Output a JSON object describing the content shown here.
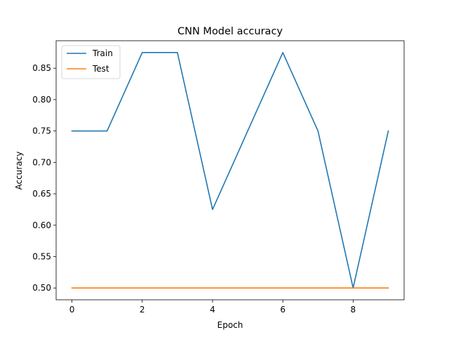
{
  "chart_data": {
    "type": "line",
    "title": "CNN Model accuracy",
    "xlabel": "Epoch",
    "ylabel": "Accuracy",
    "x": [
      0,
      1,
      2,
      3,
      4,
      5,
      6,
      7,
      8,
      9
    ],
    "xlim": [
      -0.45,
      9.45
    ],
    "ylim": [
      0.4812,
      0.8938
    ],
    "xticks": [
      0,
      2,
      4,
      6,
      8
    ],
    "yticks": [
      0.5,
      0.55,
      0.6,
      0.65,
      0.7,
      0.75,
      0.8,
      0.85
    ],
    "xtick_labels": [
      "0",
      "2",
      "4",
      "6",
      "8"
    ],
    "ytick_labels": [
      "0.50",
      "0.55",
      "0.60",
      "0.65",
      "0.70",
      "0.75",
      "0.80",
      "0.85"
    ],
    "grid": false,
    "legend_position": "top-left",
    "series": [
      {
        "name": "Train",
        "color": "#1f77b4",
        "values": [
          0.75,
          0.75,
          0.875,
          0.875,
          0.625,
          0.75,
          0.875,
          0.75,
          0.5,
          0.75
        ]
      },
      {
        "name": "Test",
        "color": "#ff7f0e",
        "values": [
          0.5,
          0.5,
          0.5,
          0.5,
          0.5,
          0.5,
          0.5,
          0.5,
          0.5,
          0.5
        ]
      }
    ]
  }
}
